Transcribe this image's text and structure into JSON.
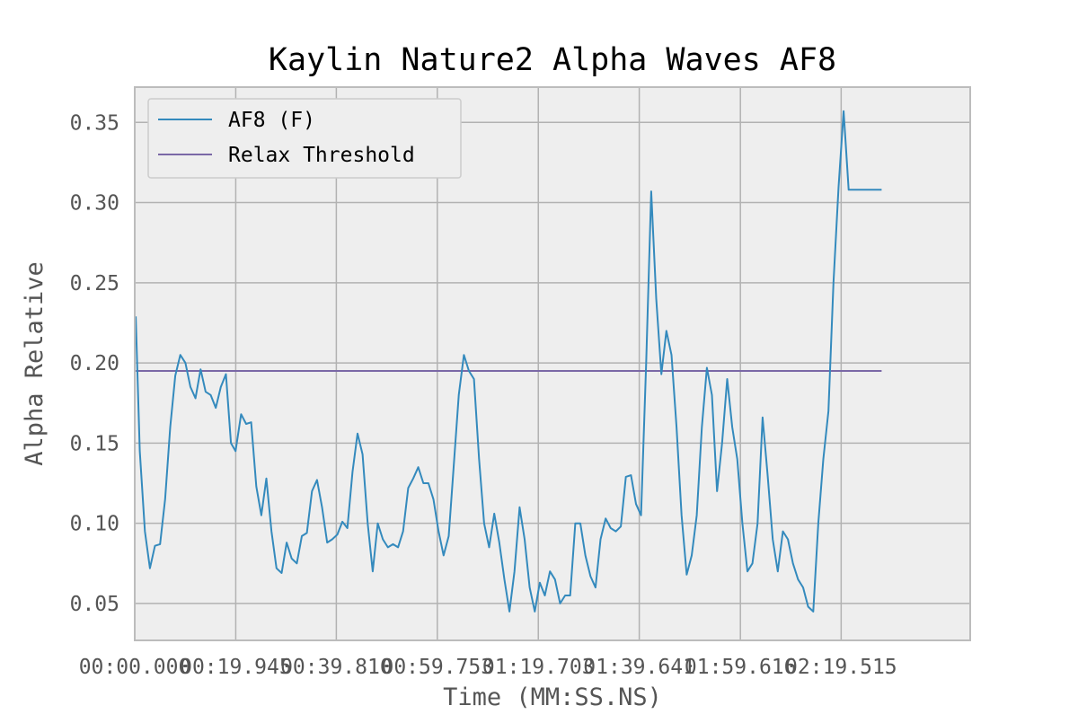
{
  "chart_data": {
    "type": "line",
    "title": "Kaylin Nature2 Alpha Waves AF8",
    "xlabel": "Time (MM:SS.NS)",
    "ylabel": "Alpha Relative",
    "ylim": [
      0.027,
      0.372
    ],
    "yticks": [
      0.05,
      0.1,
      0.15,
      0.2,
      0.25,
      0.3,
      0.35
    ],
    "ytick_labels": [
      "0.05",
      "0.10",
      "0.15",
      "0.20",
      "0.25",
      "0.30",
      "0.35"
    ],
    "xlim": [
      "00:00.000",
      "02:45.000"
    ],
    "xtick_labels": [
      "00:00.000",
      "00:19.945",
      "00:39.810",
      "00:59.753",
      "01:19.703",
      "01:39.641",
      "01:59.616",
      "02:19.515"
    ],
    "grid": true,
    "legend": {
      "placement": "top-left",
      "entries": [
        "AF8 (F)",
        "Relax Threshold"
      ]
    },
    "colors": {
      "af8": "#348ABD",
      "threshold": "#7A68A6",
      "plot_bg": "#EEEEEE",
      "grid": "#B2B2B2"
    },
    "series": [
      {
        "name": "AF8 (F)",
        "x_seconds": [
          0.2,
          1.0,
          2.0,
          3.0,
          4.0,
          5.0,
          6.0,
          7.0,
          8.0,
          9.0,
          10.0,
          11.0,
          12.0,
          13.0,
          14.0,
          15.0,
          16.0,
          17.0,
          18.0,
          19.0,
          19.9,
          21.0,
          22.0,
          23.0,
          24.0,
          25.0,
          26.0,
          27.0,
          28.0,
          29.0,
          30.0,
          31.0,
          32.0,
          33.0,
          34.0,
          35.0,
          36.0,
          37.0,
          38.0,
          39.0,
          40.0,
          41.0,
          42.0,
          43.0,
          44.0,
          45.0,
          46.0,
          47.0,
          48.0,
          49.0,
          50.0,
          51.0,
          52.0,
          53.0,
          54.0,
          55.0,
          56.0,
          57.0,
          58.0,
          59.0,
          60.0,
          61.0,
          62.0,
          63.0,
          64.0,
          65.0,
          66.0,
          67.0,
          68.0,
          69.0,
          70.0,
          71.0,
          72.0,
          73.0,
          74.0,
          75.0,
          76.0,
          77.0,
          78.0,
          79.0,
          80.0,
          81.0,
          82.0,
          83.0,
          84.0,
          85.0,
          86.0,
          87.0,
          88.0,
          89.0,
          90.0,
          91.0,
          92.0,
          93.0,
          94.0,
          95.0,
          96.0,
          97.0,
          98.0,
          99.0,
          100.0,
          101.0,
          102.0,
          103.0,
          104.0,
          105.0,
          106.0,
          107.0,
          108.0,
          109.0,
          110.0,
          111.0,
          112.0,
          113.0,
          114.0,
          115.0,
          116.0,
          117.0,
          118.0,
          119.0,
          120.0,
          121.0,
          122.0,
          123.0,
          124.0,
          125.0,
          126.0,
          127.0,
          128.0,
          129.0,
          130.0,
          131.0,
          132.0,
          133.0,
          134.0,
          135.0,
          136.0,
          137.0,
          138.0,
          139.0,
          140.0,
          141.0,
          142.0,
          143.0,
          144.0,
          145.0,
          146.0,
          147.0,
          147.5
        ],
        "values": [
          0.229,
          0.145,
          0.095,
          0.072,
          0.086,
          0.087,
          0.115,
          0.16,
          0.192,
          0.205,
          0.2,
          0.185,
          0.178,
          0.196,
          0.182,
          0.18,
          0.172,
          0.185,
          0.193,
          0.15,
          0.145,
          0.168,
          0.162,
          0.163,
          0.123,
          0.105,
          0.128,
          0.095,
          0.072,
          0.069,
          0.088,
          0.078,
          0.075,
          0.092,
          0.094,
          0.12,
          0.127,
          0.11,
          0.088,
          0.09,
          0.093,
          0.101,
          0.097,
          0.132,
          0.156,
          0.143,
          0.1,
          0.07,
          0.1,
          0.09,
          0.085,
          0.087,
          0.085,
          0.095,
          0.122,
          0.128,
          0.135,
          0.125,
          0.125,
          0.115,
          0.095,
          0.08,
          0.092,
          0.136,
          0.18,
          0.205,
          0.195,
          0.19,
          0.14,
          0.1,
          0.085,
          0.106,
          0.088,
          0.065,
          0.045,
          0.07,
          0.11,
          0.09,
          0.06,
          0.045,
          0.063,
          0.055,
          0.07,
          0.065,
          0.05,
          0.055,
          0.055,
          0.1,
          0.1,
          0.08,
          0.067,
          0.06,
          0.09,
          0.103,
          0.097,
          0.095,
          0.098,
          0.129,
          0.13,
          0.112,
          0.105,
          0.2,
          0.307,
          0.24,
          0.193,
          0.22,
          0.205,
          0.16,
          0.105,
          0.068,
          0.08,
          0.105,
          0.16,
          0.197,
          0.18,
          0.12,
          0.15,
          0.19,
          0.16,
          0.14,
          0.1,
          0.07,
          0.075,
          0.1,
          0.166,
          0.13,
          0.09,
          0.07,
          0.095,
          0.09,
          0.075,
          0.065,
          0.06,
          0.048,
          0.045,
          0.1,
          0.14,
          0.17,
          0.25,
          0.31,
          0.357,
          0.308,
          0.308,
          0.308,
          0.308,
          0.308,
          0.308,
          0.308,
          0.308
        ]
      },
      {
        "name": "Relax Threshold",
        "x_seconds": [
          0.2,
          147.5
        ],
        "values": [
          0.195,
          0.195
        ]
      }
    ]
  }
}
